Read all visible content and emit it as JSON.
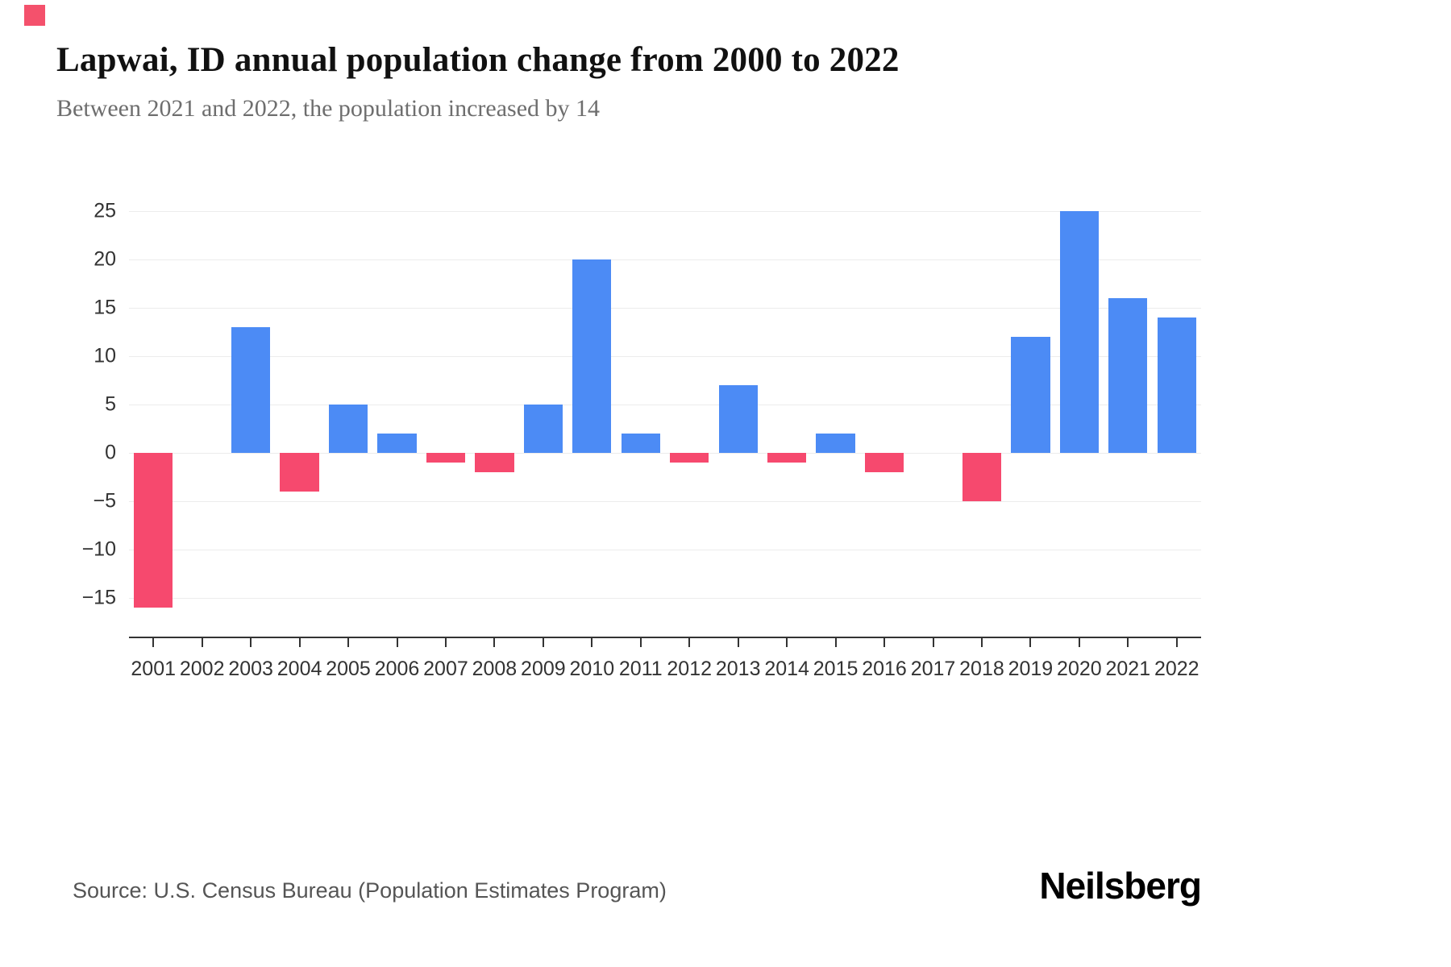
{
  "header": {
    "title": "Lapwai, ID annual population change from 2000 to 2022",
    "subtitle": "Between 2021 and 2022, the population increased by 14"
  },
  "footer": {
    "source": "Source: U.S. Census Bureau (Population Estimates Program)",
    "logo": "Neilsberg"
  },
  "decor": {
    "corner_square_color": "#f4516c"
  },
  "chart_data": {
    "type": "bar",
    "title": "Lapwai, ID annual population change from 2000 to 2022",
    "subtitle": "Between 2021 and 2022, the population increased by 14",
    "categories": [
      "2001",
      "2002",
      "2003",
      "2004",
      "2005",
      "2006",
      "2007",
      "2008",
      "2009",
      "2010",
      "2011",
      "2012",
      "2013",
      "2014",
      "2015",
      "2016",
      "2017",
      "2018",
      "2019",
      "2020",
      "2021",
      "2022"
    ],
    "values": [
      -16,
      0,
      13,
      -4,
      5,
      2,
      -1,
      -2,
      5,
      20,
      2,
      -1,
      7,
      -1,
      2,
      -2,
      0,
      -5,
      12,
      25,
      16,
      14
    ],
    "xlabel": "",
    "ylabel": "",
    "yticks": [
      25,
      20,
      15,
      10,
      5,
      0,
      -5,
      -10,
      -15
    ],
    "ylim": [
      -19,
      26
    ],
    "grid": true,
    "legend": false,
    "colors": {
      "positive": "#4C8BF5",
      "negative": "#F6496E"
    }
  }
}
